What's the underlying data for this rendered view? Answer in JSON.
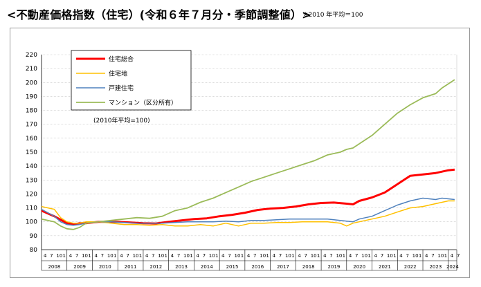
{
  "header": {
    "title": "<不動産価格指数（住宅）(令和６年７月分・季節調整値）>",
    "note": "※2010 年平均＝100"
  },
  "chart_data": {
    "type": "line",
    "title": "不動産価格指数（住宅）(令和６年７月分・季節調整値）",
    "subtitle": "(2010年平均=100)",
    "xlabel": "",
    "ylabel": "",
    "ylim": [
      80,
      220
    ],
    "yticks": [
      80,
      90,
      100,
      110,
      120,
      130,
      140,
      150,
      160,
      170,
      180,
      190,
      200,
      210,
      220
    ],
    "grid": true,
    "legend_position": "top-left",
    "x_start": "2008-04",
    "x_end": "2024-07",
    "x_years": [
      "2008",
      "2009",
      "2010",
      "2011",
      "2012",
      "2013",
      "2014",
      "2015",
      "2016",
      "2017",
      "2018",
      "2019",
      "2020",
      "2021",
      "2022",
      "2023",
      "2024"
    ],
    "month_labels": [
      "4",
      "7",
      "10",
      "1"
    ],
    "series": [
      {
        "name": "住宅総合",
        "color": "#ff0000",
        "values": [
          [
            "2008-04",
            108
          ],
          [
            "2008-10",
            104
          ],
          [
            "2009-04",
            99
          ],
          [
            "2009-07",
            98
          ],
          [
            "2009-10",
            99
          ],
          [
            "2010-01",
            99
          ],
          [
            "2010-07",
            100
          ],
          [
            "2010-10",
            100
          ],
          [
            "2011-04",
            100
          ],
          [
            "2011-10",
            99.5
          ],
          [
            "2012-04",
            99
          ],
          [
            "2012-10",
            98.8
          ],
          [
            "2013-04",
            100
          ],
          [
            "2013-10",
            101
          ],
          [
            "2014-04",
            102
          ],
          [
            "2014-10",
            102.5
          ],
          [
            "2015-04",
            104
          ],
          [
            "2015-10",
            105
          ],
          [
            "2016-04",
            106.5
          ],
          [
            "2016-10",
            108.5
          ],
          [
            "2017-04",
            109.5
          ],
          [
            "2017-10",
            110
          ],
          [
            "2018-04",
            111
          ],
          [
            "2018-10",
            112.5
          ],
          [
            "2019-04",
            113.5
          ],
          [
            "2019-10",
            113.8
          ],
          [
            "2020-04",
            113
          ],
          [
            "2020-07",
            112.5
          ],
          [
            "2020-10",
            115
          ],
          [
            "2021-04",
            117.5
          ],
          [
            "2021-10",
            121
          ],
          [
            "2022-01",
            124
          ],
          [
            "2022-07",
            130
          ],
          [
            "2022-10",
            133
          ],
          [
            "2023-04",
            134
          ],
          [
            "2023-10",
            135
          ],
          [
            "2024-01",
            136
          ],
          [
            "2024-04",
            137
          ],
          [
            "2024-07",
            137.5
          ]
        ]
      },
      {
        "name": "住宅地",
        "color": "#ffc000",
        "values": [
          [
            "2008-04",
            111
          ],
          [
            "2008-10",
            109
          ],
          [
            "2009-01",
            103
          ],
          [
            "2009-04",
            100
          ],
          [
            "2009-07",
            99
          ],
          [
            "2009-10",
            99
          ],
          [
            "2010-01",
            100
          ],
          [
            "2010-07",
            100
          ],
          [
            "2011-01",
            99
          ],
          [
            "2011-07",
            98
          ],
          [
            "2012-01",
            98
          ],
          [
            "2012-07",
            97.5
          ],
          [
            "2013-01",
            98
          ],
          [
            "2013-07",
            97
          ],
          [
            "2014-01",
            97
          ],
          [
            "2014-07",
            98
          ],
          [
            "2015-01",
            97
          ],
          [
            "2015-07",
            99
          ],
          [
            "2016-01",
            97
          ],
          [
            "2016-07",
            99
          ],
          [
            "2017-01",
            99
          ],
          [
            "2017-07",
            99.5
          ],
          [
            "2018-01",
            99.5
          ],
          [
            "2018-07",
            100
          ],
          [
            "2019-01",
            100
          ],
          [
            "2019-07",
            100
          ],
          [
            "2020-01",
            99
          ],
          [
            "2020-04",
            97
          ],
          [
            "2020-07",
            99
          ],
          [
            "2020-10",
            100
          ],
          [
            "2021-04",
            102
          ],
          [
            "2021-10",
            104
          ],
          [
            "2022-04",
            107
          ],
          [
            "2022-10",
            110
          ],
          [
            "2023-04",
            111
          ],
          [
            "2023-10",
            113
          ],
          [
            "2024-01",
            114
          ],
          [
            "2024-04",
            115
          ],
          [
            "2024-07",
            115
          ]
        ]
      },
      {
        "name": "戸建住宅",
        "color": "#4f81bd",
        "values": [
          [
            "2008-04",
            109
          ],
          [
            "2008-10",
            104
          ],
          [
            "2009-01",
            100
          ],
          [
            "2009-04",
            98
          ],
          [
            "2009-07",
            97.5
          ],
          [
            "2009-10",
            98
          ],
          [
            "2010-01",
            99
          ],
          [
            "2010-07",
            100
          ],
          [
            "2011-01",
            100
          ],
          [
            "2011-07",
            99.5
          ],
          [
            "2012-01",
            99
          ],
          [
            "2012-07",
            99
          ],
          [
            "2013-01",
            99
          ],
          [
            "2013-07",
            99.5
          ],
          [
            "2014-01",
            100
          ],
          [
            "2014-07",
            100
          ],
          [
            "2015-01",
            100
          ],
          [
            "2015-07",
            100.5
          ],
          [
            "2016-01",
            100
          ],
          [
            "2016-07",
            101
          ],
          [
            "2017-01",
            101
          ],
          [
            "2017-07",
            101.5
          ],
          [
            "2018-01",
            102
          ],
          [
            "2018-07",
            102
          ],
          [
            "2019-01",
            102
          ],
          [
            "2019-07",
            102
          ],
          [
            "2020-01",
            101
          ],
          [
            "2020-07",
            100
          ],
          [
            "2020-10",
            102
          ],
          [
            "2021-04",
            104
          ],
          [
            "2021-10",
            108
          ],
          [
            "2022-04",
            112
          ],
          [
            "2022-10",
            115
          ],
          [
            "2023-04",
            117
          ],
          [
            "2023-10",
            116
          ],
          [
            "2024-01",
            117
          ],
          [
            "2024-04",
            116.5
          ],
          [
            "2024-07",
            116
          ]
        ]
      },
      {
        "name": "マンション（区分所有）",
        "color": "#9bbb59",
        "values": [
          [
            "2008-04",
            102
          ],
          [
            "2008-10",
            100
          ],
          [
            "2009-01",
            97
          ],
          [
            "2009-04",
            95
          ],
          [
            "2009-07",
            94.5
          ],
          [
            "2009-10",
            96
          ],
          [
            "2010-01",
            99
          ],
          [
            "2010-07",
            100
          ],
          [
            "2011-01",
            101
          ],
          [
            "2011-07",
            102
          ],
          [
            "2012-01",
            103
          ],
          [
            "2012-07",
            102.5
          ],
          [
            "2013-01",
            104
          ],
          [
            "2013-07",
            108
          ],
          [
            "2014-01",
            110
          ],
          [
            "2014-07",
            114
          ],
          [
            "2015-01",
            117
          ],
          [
            "2015-07",
            121
          ],
          [
            "2016-01",
            125
          ],
          [
            "2016-07",
            129
          ],
          [
            "2017-01",
            132
          ],
          [
            "2017-07",
            135
          ],
          [
            "2018-01",
            138
          ],
          [
            "2018-07",
            141
          ],
          [
            "2019-01",
            144
          ],
          [
            "2019-07",
            148
          ],
          [
            "2020-01",
            150
          ],
          [
            "2020-04",
            152
          ],
          [
            "2020-07",
            153
          ],
          [
            "2020-10",
            156
          ],
          [
            "2021-04",
            162
          ],
          [
            "2021-10",
            170
          ],
          [
            "2022-04",
            178
          ],
          [
            "2022-10",
            184
          ],
          [
            "2023-04",
            189
          ],
          [
            "2023-10",
            192
          ],
          [
            "2024-01",
            196
          ],
          [
            "2024-04",
            199
          ],
          [
            "2024-07",
            202
          ]
        ]
      }
    ]
  }
}
